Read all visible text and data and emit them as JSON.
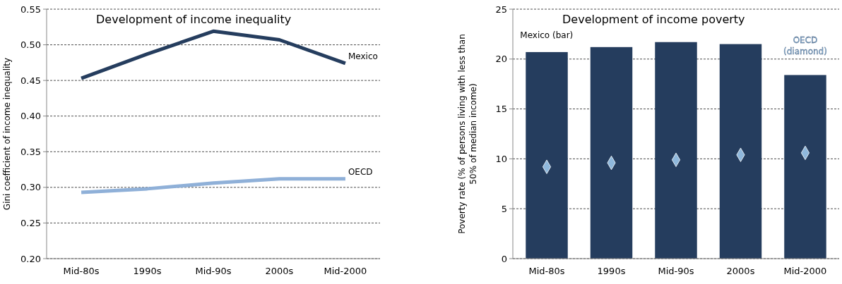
{
  "chart_data": [
    {
      "type": "line",
      "title": "Development of income inequality",
      "ylabel": "Gini coefficient of income inequality",
      "categories": [
        "Mid-80s",
        "1990s",
        "Mid-90s",
        "2000s",
        "Mid-2000"
      ],
      "series": [
        {
          "name": "Mexico",
          "color": "#253d5e",
          "values": [
            0.453,
            0.487,
            0.519,
            0.507,
            0.474
          ]
        },
        {
          "name": "OECD",
          "color": "#8fb0d8",
          "values": [
            0.293,
            0.298,
            0.306,
            0.312,
            0.312
          ]
        }
      ],
      "ylim": [
        0.2,
        0.55
      ],
      "yticks": [
        {
          "value": 0.2,
          "label": "0.20"
        },
        {
          "value": 0.25,
          "label": "0.25"
        },
        {
          "value": 0.3,
          "label": "0.30"
        },
        {
          "value": 0.35,
          "label": "0.35"
        },
        {
          "value": 0.4,
          "label": "0.40"
        },
        {
          "value": 0.45,
          "label": "0.45"
        },
        {
          "value": 0.5,
          "label": "0.50"
        },
        {
          "value": 0.55,
          "label": "0.55"
        }
      ],
      "grid": "y"
    },
    {
      "type": "bar",
      "title": "Development of income poverty",
      "ylabel": "Poverty rate (% of persons living with less than 50% of median income)",
      "categories": [
        "Mid-80s",
        "1990s",
        "Mid-90s",
        "2000s",
        "Mid-2000"
      ],
      "series": [
        {
          "name": "Mexico (bar)",
          "color": "#253d5e",
          "values": [
            20.7,
            21.2,
            21.7,
            21.5,
            18.4
          ]
        },
        {
          "name": "OECD (diamond)",
          "type": "scatter",
          "marker": "diamond",
          "color": "#8fb8dc",
          "values": [
            9.2,
            9.6,
            9.9,
            10.4,
            10.6
          ]
        }
      ],
      "ylim": [
        0,
        25
      ],
      "yticks": [
        0,
        5,
        10,
        15,
        20,
        25
      ],
      "grid": "y"
    }
  ]
}
